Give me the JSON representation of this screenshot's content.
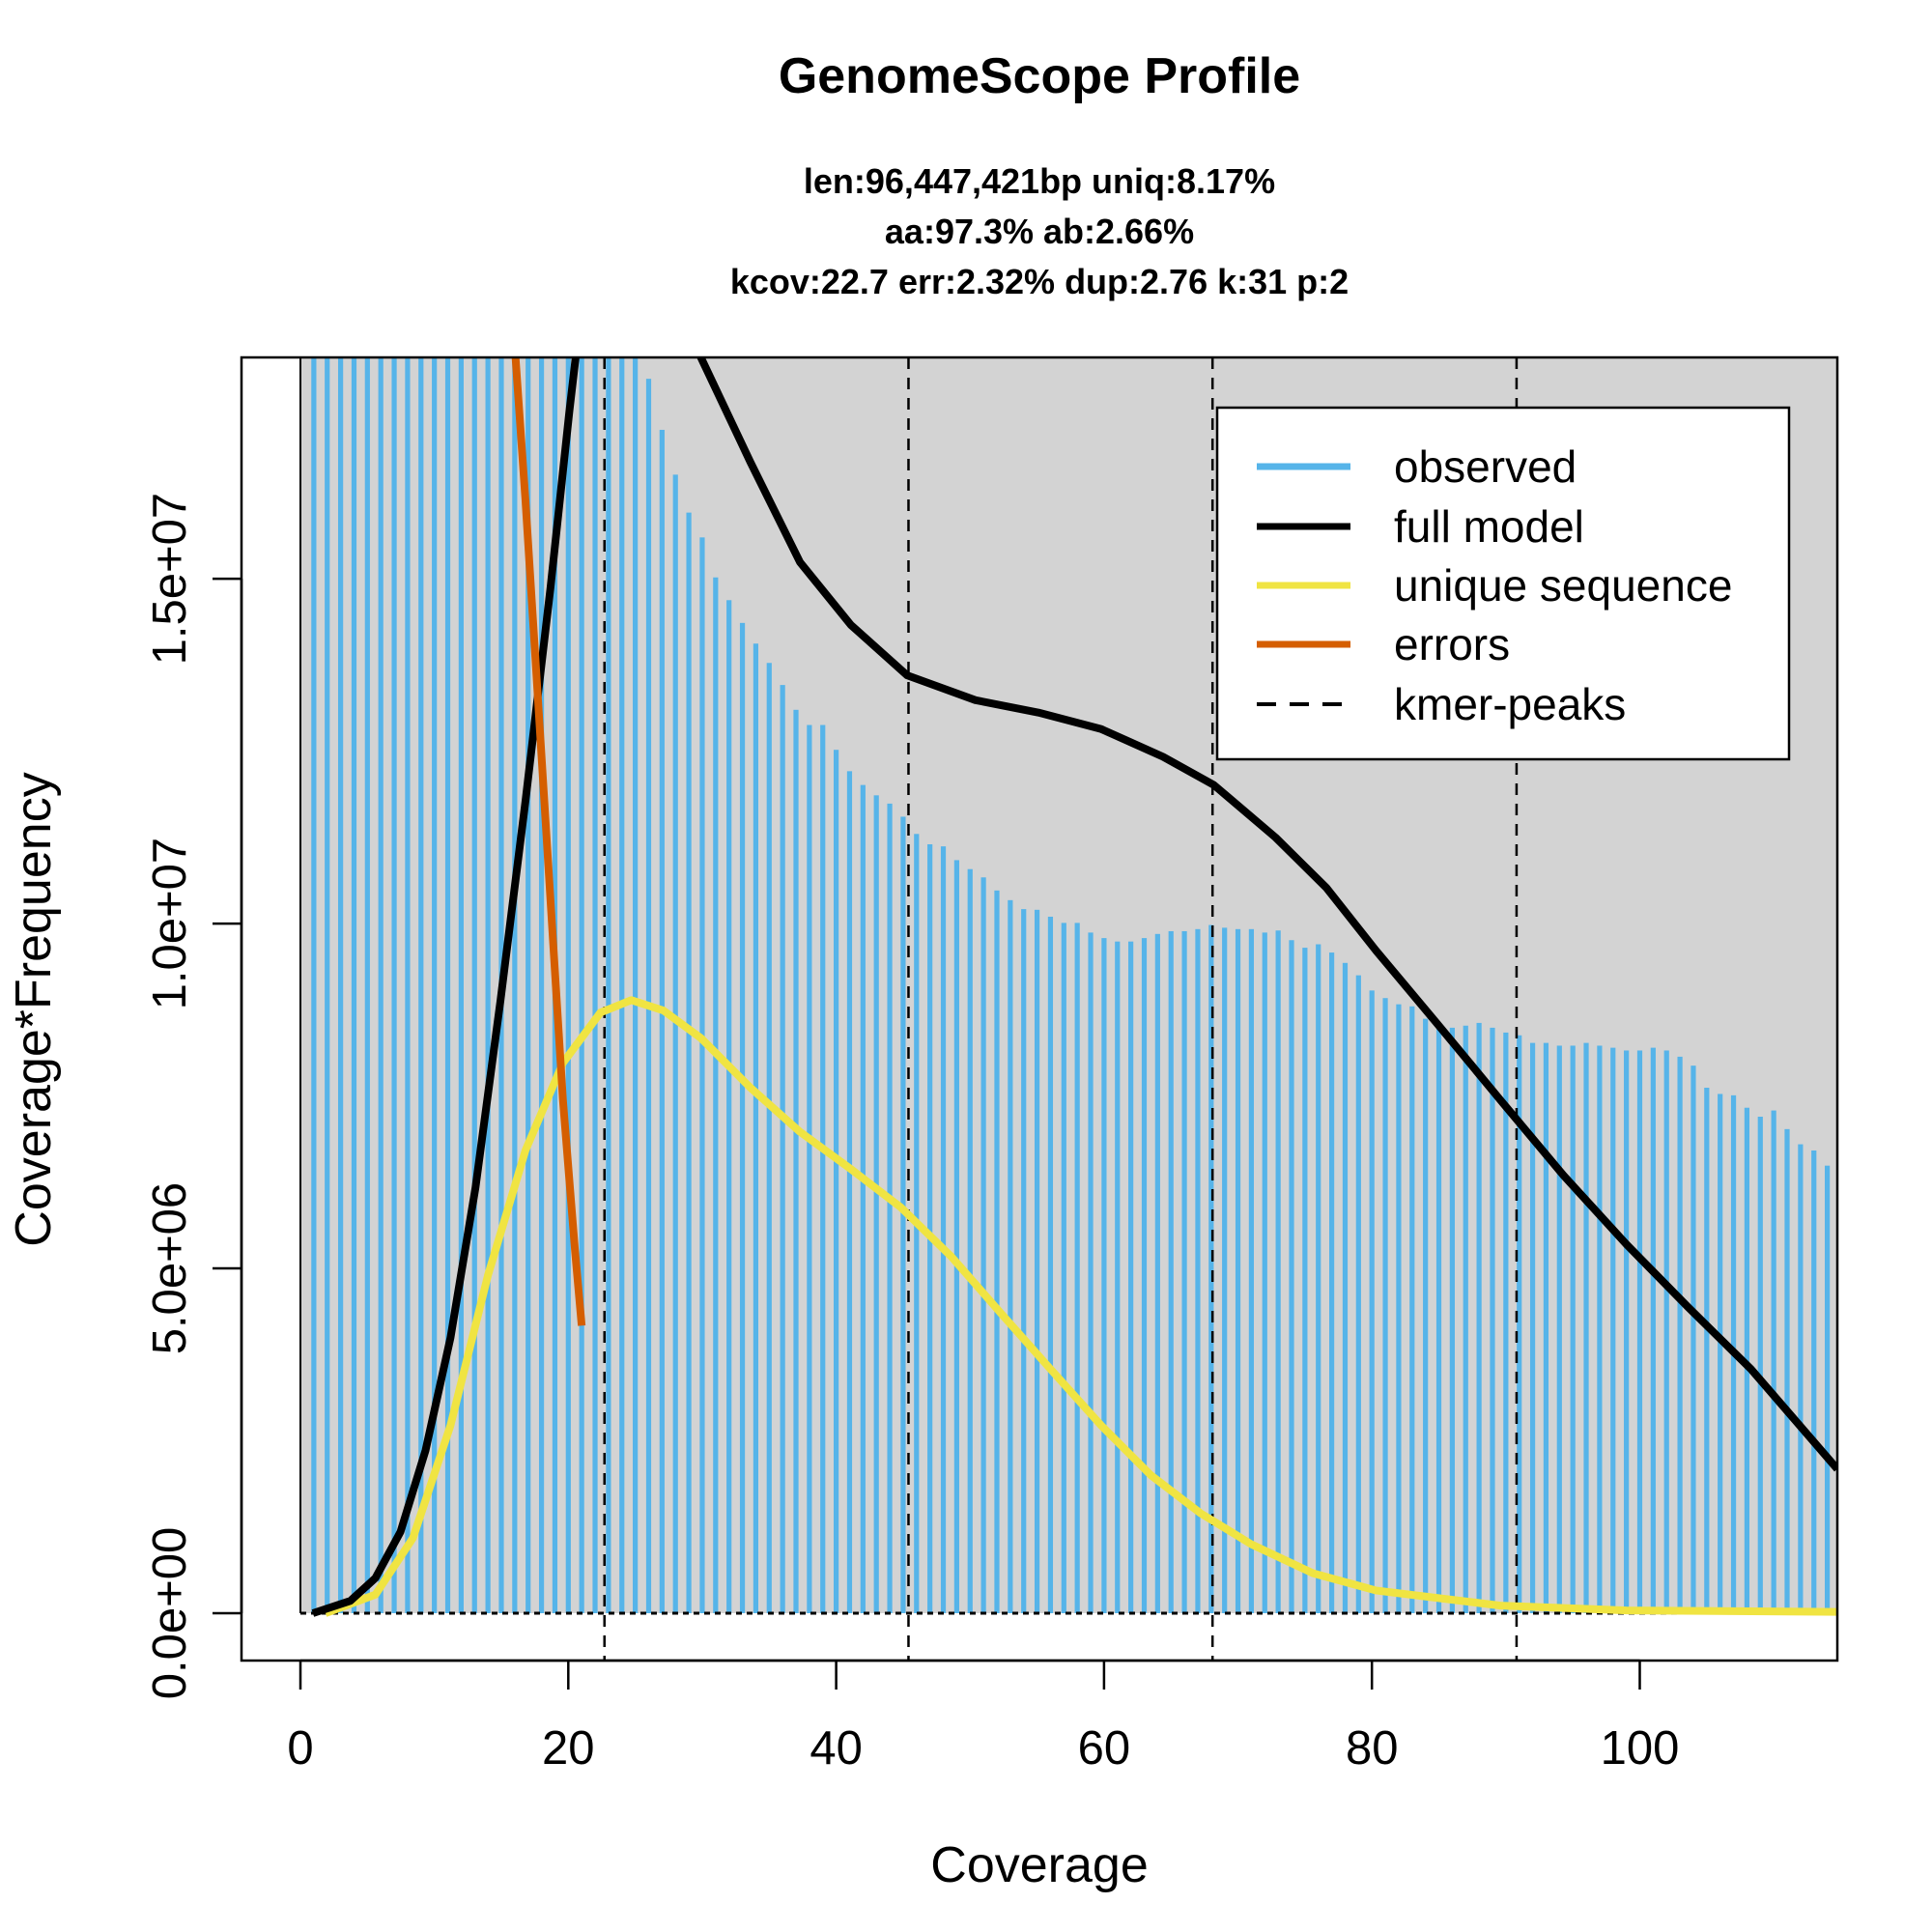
{
  "chart_data": {
    "type": "bar",
    "title": "GenomeScope Profile",
    "subtitle_lines": [
      "len:96,447,421bp uniq:8.17%",
      "aa:97.3% ab:2.66%",
      "kcov:22.7 err:2.32%  dup:2.76  k:31 p:2"
    ],
    "xlabel": "Coverage",
    "ylabel": "Coverage*Frequency",
    "xlim": [
      -4.4,
      114.75
    ],
    "ylim": [
      0,
      18210000
    ],
    "x_ticks": [
      0,
      20,
      40,
      60,
      80,
      100
    ],
    "x_tick_labels": [
      "0",
      "20",
      "40",
      "60",
      "80",
      "100"
    ],
    "y_ticks": [
      0,
      5000000,
      10000000,
      15000000
    ],
    "y_tick_labels": [
      "0.0e+00",
      "5.0e+06",
      "1.0e+07",
      "1.5e+07"
    ],
    "legend_position": "top-right",
    "colors": {
      "observed": "#56B4E9",
      "full_model": "#000000",
      "unique": "#F0E442",
      "errors": "#D55E00",
      "background": "#D3D3D3"
    },
    "kmer_peaks": [
      22.7,
      45.4,
      68.1,
      90.8
    ],
    "observed": {
      "name": "observed",
      "x_start": 1,
      "values_millions": [
        25,
        25,
        25,
        25,
        25,
        25,
        25,
        25,
        25,
        25,
        25,
        25,
        25,
        25,
        25,
        25,
        25,
        25,
        25,
        25,
        25,
        25,
        25,
        25,
        25,
        17.9,
        17.16,
        16.51,
        15.96,
        15.6,
        15.02,
        14.69,
        14.36,
        14.06,
        13.78,
        13.46,
        13.1,
        12.88,
        12.88,
        12.52,
        12.21,
        12.01,
        11.86,
        11.74,
        11.55,
        11.3,
        11.15,
        11.12,
        10.92,
        10.79,
        10.67,
        10.48,
        10.34,
        10.21,
        10.2,
        10.1,
        10.01,
        10.01,
        9.87,
        9.79,
        9.74,
        9.74,
        9.79,
        9.85,
        9.89,
        9.89,
        9.92,
        9.98,
        9.94,
        9.92,
        9.92,
        9.87,
        9.9,
        9.76,
        9.65,
        9.7,
        9.58,
        9.43,
        9.25,
        9.03,
        8.92,
        8.83,
        8.8,
        8.62,
        8.52,
        8.49,
        8.52,
        8.56,
        8.49,
        8.42,
        8.38,
        8.27,
        8.27,
        8.23,
        8.23,
        8.27,
        8.23,
        8.2,
        8.16,
        8.16,
        8.2,
        8.16,
        8.07,
        7.94,
        7.62,
        7.53,
        7.51,
        7.33,
        7.2,
        7.29,
        7.02,
        6.8,
        6.71,
        6.49
      ]
    },
    "full_model": {
      "name": "full model",
      "points_millions": [
        [
          0.93,
          0
        ],
        [
          3.73,
          0.18
        ],
        [
          5.6,
          0.51
        ],
        [
          7.47,
          1.18
        ],
        [
          9.34,
          2.36
        ],
        [
          11.2,
          3.99
        ],
        [
          13.07,
          6.17
        ],
        [
          14.94,
          8.89
        ],
        [
          16.81,
          11.79
        ],
        [
          18.67,
          14.87
        ],
        [
          20.07,
          17.41
        ],
        [
          21.5,
          19.8
        ],
        [
          24.3,
          21.2
        ],
        [
          27.1,
          19.8
        ],
        [
          29.9,
          18.21
        ],
        [
          33.6,
          16.69
        ],
        [
          37.3,
          15.24
        ],
        [
          41.1,
          14.33
        ],
        [
          45.3,
          13.6
        ],
        [
          50.4,
          13.24
        ],
        [
          55.1,
          13.06
        ],
        [
          59.8,
          12.82
        ],
        [
          64.4,
          12.42
        ],
        [
          68.2,
          12.01
        ],
        [
          72.8,
          11.25
        ],
        [
          76.6,
          10.52
        ],
        [
          80.3,
          9.61
        ],
        [
          85.0,
          8.52
        ],
        [
          89.6,
          7.44
        ],
        [
          94.3,
          6.35
        ],
        [
          99.0,
          5.35
        ],
        [
          103.6,
          4.44
        ],
        [
          108.3,
          3.54
        ],
        [
          114.75,
          2.09
        ]
      ]
    },
    "unique_sequence": {
      "name": "unique sequence",
      "points_millions": [
        [
          1.87,
          0
        ],
        [
          5.6,
          0.27
        ],
        [
          8.4,
          1.09
        ],
        [
          11.2,
          2.72
        ],
        [
          14.0,
          4.9
        ],
        [
          16.8,
          6.71
        ],
        [
          19.6,
          7.98
        ],
        [
          22.4,
          8.71
        ],
        [
          24.7,
          8.89
        ],
        [
          27.1,
          8.74
        ],
        [
          29.9,
          8.34
        ],
        [
          33.6,
          7.62
        ],
        [
          37.3,
          6.98
        ],
        [
          41.1,
          6.44
        ],
        [
          44.8,
          5.89
        ],
        [
          48.6,
          5.17
        ],
        [
          52.3,
          4.35
        ],
        [
          56.0,
          3.54
        ],
        [
          59.8,
          2.72
        ],
        [
          63.5,
          2.0
        ],
        [
          67.2,
          1.45
        ],
        [
          71.0,
          1.0
        ],
        [
          75.6,
          0.58
        ],
        [
          80.3,
          0.33
        ],
        [
          89.6,
          0.11
        ],
        [
          99,
          0.04
        ],
        [
          114.75,
          0.02
        ]
      ]
    },
    "errors": {
      "name": "errors",
      "points_millions": [
        [
          16.06,
          18.21
        ],
        [
          16.8,
          16.14
        ],
        [
          17.74,
          13.24
        ],
        [
          18.67,
          10.34
        ],
        [
          19.6,
          7.44
        ],
        [
          20.5,
          5.26
        ],
        [
          21.0,
          4.17
        ]
      ]
    },
    "legend": [
      "observed",
      "full model",
      "unique sequence",
      "errors",
      "kmer-peaks"
    ]
  }
}
